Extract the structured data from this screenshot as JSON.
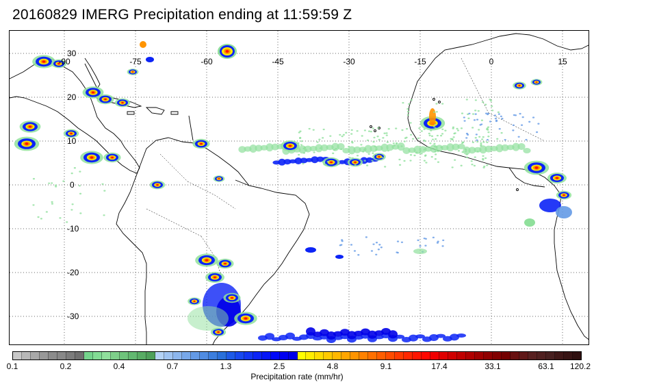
{
  "title": "20160829 IMERG Precipitation ending at 11:59:59 Z",
  "map": {
    "lon_labels": [
      "-90",
      "-75",
      "-60",
      "-45",
      "-30",
      "-15",
      "0",
      "15"
    ],
    "lat_labels": [
      "30",
      "20",
      "10",
      "0",
      "-10",
      "-20",
      "-30"
    ],
    "grid_style": "dotted"
  },
  "colorbar": {
    "tick_labels": [
      "0.1",
      "0.2",
      "0.4",
      "0.7",
      "1.3",
      "2.5",
      "4.8",
      "9.1",
      "17.4",
      "33.1",
      "63.1",
      "120.2"
    ],
    "label": "Precipitation rate (mm/hr)",
    "colors": [
      "#c8c8c8",
      "#b8b8b8",
      "#a8a8a8",
      "#989898",
      "#8c8c8c",
      "#888888",
      "#7c7c7c",
      "#707070",
      "#74d48c",
      "#82dc94",
      "#90e09c",
      "#7ecf8a",
      "#6fc47c",
      "#62b870",
      "#58ac64",
      "#4ea05a",
      "#b4d2f6",
      "#a0c4f2",
      "#8cb6ee",
      "#78a8ea",
      "#649ae6",
      "#508ce2",
      "#3c7ede",
      "#2a70da",
      "#1e5ae6",
      "#1848ee",
      "#1236f2",
      "#0c24f6",
      "#0616f8",
      "#0008fa",
      "#0000f2",
      "#0000e8",
      "#ffff00",
      "#ffee00",
      "#ffdc00",
      "#ffca00",
      "#ffb800",
      "#ffa600",
      "#ff9400",
      "#ff8200",
      "#ff7000",
      "#ff5e00",
      "#ff4c00",
      "#ff3a00",
      "#ff2800",
      "#ff1600",
      "#ff0800",
      "#f00000",
      "#e00000",
      "#d00000",
      "#c00000",
      "#b00000",
      "#a00000",
      "#900000",
      "#820000",
      "#740000",
      "#681010",
      "#601818",
      "#582020",
      "#502020",
      "#482020",
      "#401818",
      "#381414",
      "#301010"
    ]
  }
}
